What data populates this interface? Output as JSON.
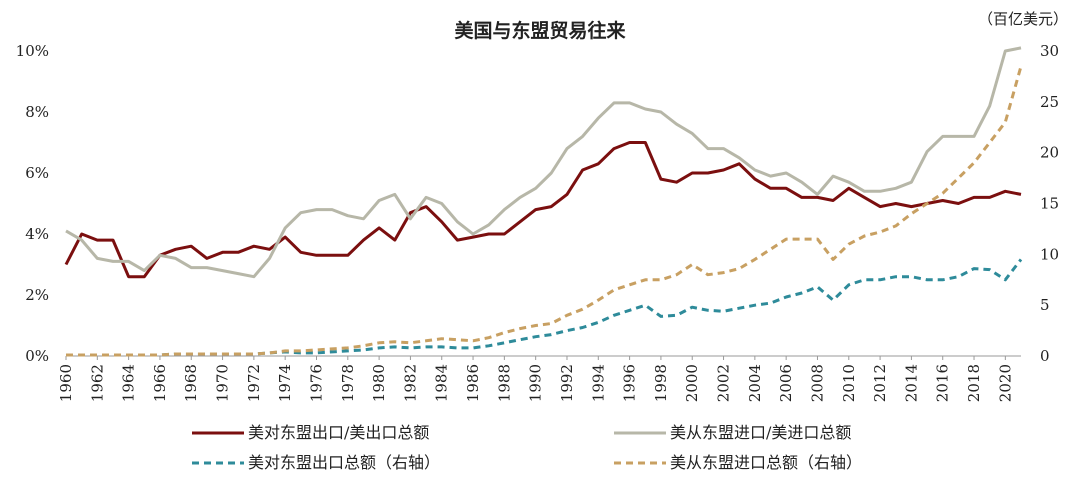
{
  "chart_data": {
    "type": "line",
    "title": "美国与东盟贸易往来",
    "right_unit": "（百亿美元）",
    "x": [
      1960,
      1961,
      1962,
      1963,
      1964,
      1965,
      1966,
      1967,
      1968,
      1969,
      1970,
      1971,
      1972,
      1973,
      1974,
      1975,
      1976,
      1977,
      1978,
      1979,
      1980,
      1981,
      1982,
      1983,
      1984,
      1985,
      1986,
      1987,
      1988,
      1989,
      1990,
      1991,
      1992,
      1993,
      1994,
      1995,
      1996,
      1997,
      1998,
      1999,
      2000,
      2001,
      2002,
      2003,
      2004,
      2005,
      2006,
      2007,
      2008,
      2009,
      2010,
      2011,
      2012,
      2013,
      2014,
      2015,
      2016,
      2017,
      2018,
      2019,
      2020,
      2021
    ],
    "x_tick_labels": [
      "1960",
      "1962",
      "1964",
      "1966",
      "1968",
      "1970",
      "1972",
      "1974",
      "1976",
      "1978",
      "1980",
      "1982",
      "1984",
      "1986",
      "1988",
      "1990",
      "1992",
      "1994",
      "1996",
      "1998",
      "2000",
      "2002",
      "2004",
      "2006",
      "2008",
      "2010",
      "2012",
      "2014",
      "2016",
      "2018",
      "2020"
    ],
    "left_axis": {
      "ylim": [
        0,
        0.1
      ],
      "ticks": [
        "0%",
        "2%",
        "4%",
        "6%",
        "8%",
        "10%"
      ]
    },
    "right_axis": {
      "ylim": [
        0,
        30
      ],
      "ticks": [
        "0",
        "5",
        "10",
        "15",
        "20",
        "25",
        "30"
      ]
    },
    "series": [
      {
        "name": "美对东盟出口/美出口总额",
        "axis": "left",
        "color": "#7b0f0f",
        "dash": "solid",
        "values": [
          0.03,
          0.04,
          0.038,
          0.038,
          0.026,
          0.026,
          0.033,
          0.035,
          0.036,
          0.032,
          0.034,
          0.034,
          0.036,
          0.035,
          0.039,
          0.034,
          0.033,
          0.033,
          0.033,
          0.038,
          0.042,
          0.038,
          0.047,
          0.049,
          0.044,
          0.038,
          0.039,
          0.04,
          0.04,
          0.044,
          0.048,
          0.049,
          0.053,
          0.061,
          0.063,
          0.068,
          0.07,
          0.07,
          0.058,
          0.057,
          0.06,
          0.06,
          0.061,
          0.063,
          0.058,
          0.055,
          0.055,
          0.052,
          0.052,
          0.051,
          0.055,
          0.052,
          0.049,
          0.05,
          0.049,
          0.05,
          0.051,
          0.05,
          0.052,
          0.052,
          0.054,
          0.053
        ]
      },
      {
        "name": "美从东盟进口/美进口总额",
        "axis": "left",
        "color": "#b7b7a8",
        "dash": "solid",
        "values": [
          0.041,
          0.038,
          0.032,
          0.031,
          0.031,
          0.028,
          0.033,
          0.032,
          0.029,
          0.029,
          0.028,
          0.027,
          0.026,
          0.032,
          0.042,
          0.047,
          0.048,
          0.048,
          0.046,
          0.045,
          0.051,
          0.053,
          0.045,
          0.052,
          0.05,
          0.044,
          0.04,
          0.043,
          0.048,
          0.052,
          0.055,
          0.06,
          0.068,
          0.072,
          0.078,
          0.083,
          0.083,
          0.081,
          0.08,
          0.076,
          0.073,
          0.068,
          0.068,
          0.065,
          0.061,
          0.059,
          0.06,
          0.057,
          0.053,
          0.059,
          0.057,
          0.054,
          0.054,
          0.055,
          0.057,
          0.067,
          0.072,
          0.072,
          0.072,
          0.082,
          0.1,
          0.101
        ]
      },
      {
        "name": "美对东盟出口总额（右轴）",
        "axis": "right",
        "color": "#2e8b9a",
        "dash": "dashed",
        "values": [
          0.1,
          0.1,
          0.1,
          0.1,
          0.1,
          0.1,
          0.1,
          0.2,
          0.2,
          0.2,
          0.2,
          0.2,
          0.2,
          0.3,
          0.4,
          0.3,
          0.3,
          0.4,
          0.5,
          0.6,
          0.8,
          0.9,
          0.8,
          0.9,
          0.9,
          0.8,
          0.8,
          1.0,
          1.3,
          1.6,
          1.9,
          2.1,
          2.5,
          2.8,
          3.3,
          4.0,
          4.5,
          5.0,
          3.9,
          4.0,
          4.8,
          4.5,
          4.4,
          4.7,
          5.0,
          5.2,
          5.8,
          6.2,
          6.8,
          5.5,
          7.0,
          7.5,
          7.5,
          7.8,
          7.8,
          7.5,
          7.5,
          7.8,
          8.6,
          8.5,
          7.5,
          9.5
        ]
      },
      {
        "name": "美从东盟进口总额（右轴）",
        "axis": "right",
        "color": "#c8a062",
        "dash": "dashed",
        "values": [
          0.1,
          0.1,
          0.1,
          0.1,
          0.1,
          0.1,
          0.1,
          0.2,
          0.2,
          0.2,
          0.2,
          0.2,
          0.2,
          0.3,
          0.5,
          0.5,
          0.6,
          0.7,
          0.8,
          1.0,
          1.3,
          1.4,
          1.3,
          1.5,
          1.7,
          1.6,
          1.5,
          1.8,
          2.3,
          2.7,
          3.0,
          3.2,
          4.0,
          4.6,
          5.5,
          6.5,
          7.0,
          7.5,
          7.5,
          8.0,
          9.0,
          8.0,
          8.2,
          8.6,
          9.5,
          10.5,
          11.5,
          11.5,
          11.5,
          9.5,
          11.0,
          11.8,
          12.2,
          12.8,
          14.0,
          15.0,
          16.0,
          17.5,
          19.0,
          21.0,
          23.0,
          28.5
        ]
      }
    ],
    "grid": false,
    "legend_placement": "bottom"
  }
}
